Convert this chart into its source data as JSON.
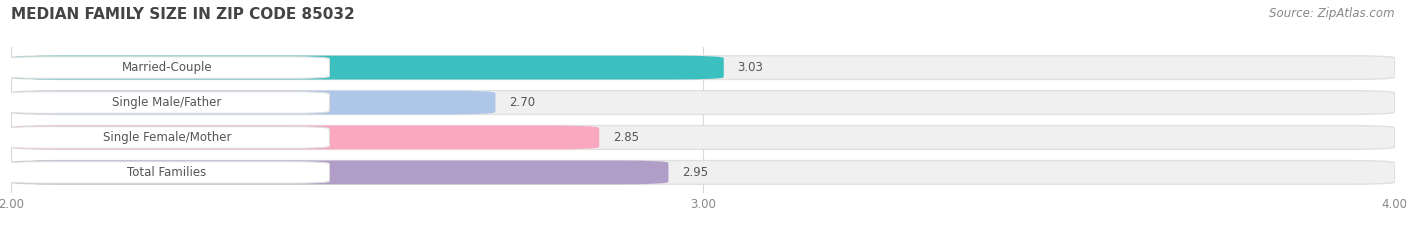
{
  "title": "MEDIAN FAMILY SIZE IN ZIP CODE 85032",
  "source": "Source: ZipAtlas.com",
  "categories": [
    "Married-Couple",
    "Single Male/Father",
    "Single Female/Mother",
    "Total Families"
  ],
  "values": [
    3.03,
    2.7,
    2.85,
    2.95
  ],
  "bar_colors": [
    "#3bbfbf",
    "#aec6e8",
    "#f9a8c0",
    "#b09ec8"
  ],
  "bar_bg_color": "#f0f0f0",
  "xlim_min": 2.0,
  "xlim_max": 4.0,
  "xticks": [
    2.0,
    3.0,
    4.0
  ],
  "xtick_labels": [
    "2.00",
    "3.00",
    "4.00"
  ],
  "title_fontsize": 11,
  "label_fontsize": 8.5,
  "value_fontsize": 8.5,
  "source_fontsize": 8.5,
  "bar_height": 0.68,
  "background_color": "#ffffff",
  "grid_color": "#d8d8d8",
  "text_color": "#555555",
  "source_color": "#888888",
  "title_color": "#444444"
}
